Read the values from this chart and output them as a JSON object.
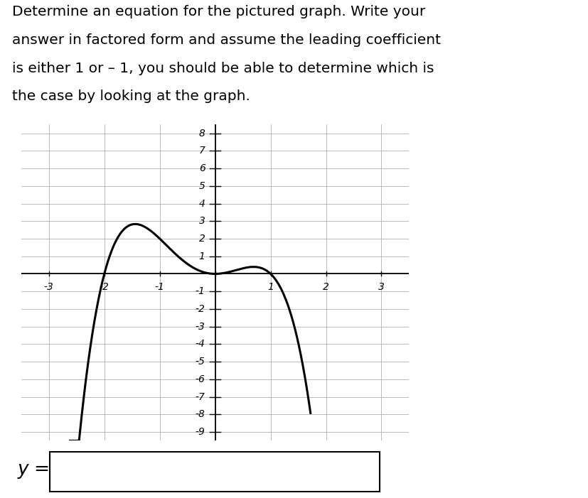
{
  "title_lines": [
    "Determine an equation for the pictured graph. Write your",
    "answer in factored form and assume the leading coefficient",
    "is either 1 or – 1, you should be able to determine which is",
    "the case by looking at the graph."
  ],
  "title_fontsize": 14.5,
  "title_fontfamily": "DejaVu Sans",
  "xlim": [
    -3.5,
    3.5
  ],
  "ylim": [
    -9.5,
    8.5
  ],
  "xticks": [
    -3,
    -2,
    -1,
    0,
    1,
    2,
    3
  ],
  "yticks": [
    -9,
    -8,
    -7,
    -6,
    -5,
    -4,
    -3,
    -2,
    -1,
    0,
    1,
    2,
    3,
    4,
    5,
    6,
    7,
    8
  ],
  "xlabel_visible_ticks": [
    -3,
    -2,
    -1,
    1,
    2,
    3
  ],
  "ylabel_visible_ticks": [
    -9,
    -8,
    -7,
    -6,
    -5,
    -4,
    -3,
    -2,
    -1,
    1,
    2,
    3,
    4,
    5,
    6,
    7,
    8
  ],
  "curve_color": "#000000",
  "curve_linewidth": 2.2,
  "grid_color": "#b0b0b0",
  "grid_linewidth": 0.6,
  "background_color": "#ffffff",
  "axes_color": "#000000",
  "tick_fontsize": 10,
  "answer_label": "y =",
  "leading_coeff": -1,
  "x_start": -2.62,
  "x_end": 1.72
}
